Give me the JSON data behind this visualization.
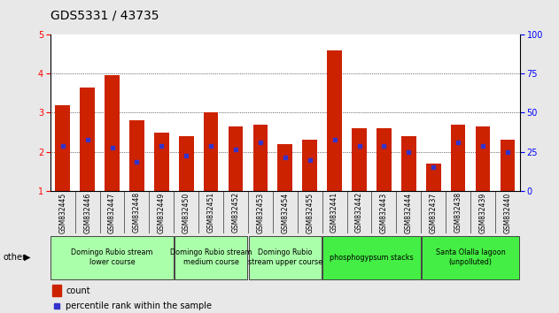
{
  "title": "GDS5331 / 43735",
  "samples": [
    "GSM832445",
    "GSM832446",
    "GSM832447",
    "GSM832448",
    "GSM832449",
    "GSM832450",
    "GSM832451",
    "GSM832452",
    "GSM832453",
    "GSM832454",
    "GSM832455",
    "GSM832441",
    "GSM832442",
    "GSM832443",
    "GSM832444",
    "GSM832437",
    "GSM832438",
    "GSM832439",
    "GSM832440"
  ],
  "count_values": [
    3.2,
    3.65,
    3.95,
    2.8,
    2.5,
    2.4,
    3.0,
    2.65,
    2.7,
    2.2,
    2.3,
    4.6,
    2.6,
    2.6,
    2.4,
    1.7,
    2.7,
    2.65,
    2.3
  ],
  "percentile_values": [
    2.15,
    2.3,
    2.1,
    1.75,
    2.15,
    1.9,
    2.15,
    2.05,
    2.25,
    1.85,
    1.8,
    2.3,
    2.15,
    2.15,
    2.0,
    1.6,
    2.25,
    2.15,
    2.0
  ],
  "groups": [
    {
      "label": "Domingo Rubio stream\nlower course",
      "start": 0,
      "end": 4,
      "color": "#aaffaa"
    },
    {
      "label": "Domingo Rubio stream\nmedium course",
      "start": 5,
      "end": 7,
      "color": "#aaffaa"
    },
    {
      "label": "Domingo Rubio\nstream upper course",
      "start": 8,
      "end": 10,
      "color": "#aaffaa"
    },
    {
      "label": "phosphogypsum stacks",
      "start": 11,
      "end": 14,
      "color": "#44ee44"
    },
    {
      "label": "Santa Olalla lagoon\n(unpolluted)",
      "start": 15,
      "end": 18,
      "color": "#44ee44"
    }
  ],
  "ylim_left": [
    1,
    5
  ],
  "ylim_right": [
    0,
    100
  ],
  "yticks_left": [
    1,
    2,
    3,
    4,
    5
  ],
  "yticks_right": [
    0,
    25,
    50,
    75,
    100
  ],
  "bar_color": "#cc2200",
  "dot_color": "#3333cc",
  "bg_color": "#e8e8e8",
  "plot_bg": "#ffffff",
  "grid_color": "#000000",
  "title_color": "#000000",
  "title_fontsize": 10,
  "tick_fontsize": 7,
  "bar_width": 0.6
}
